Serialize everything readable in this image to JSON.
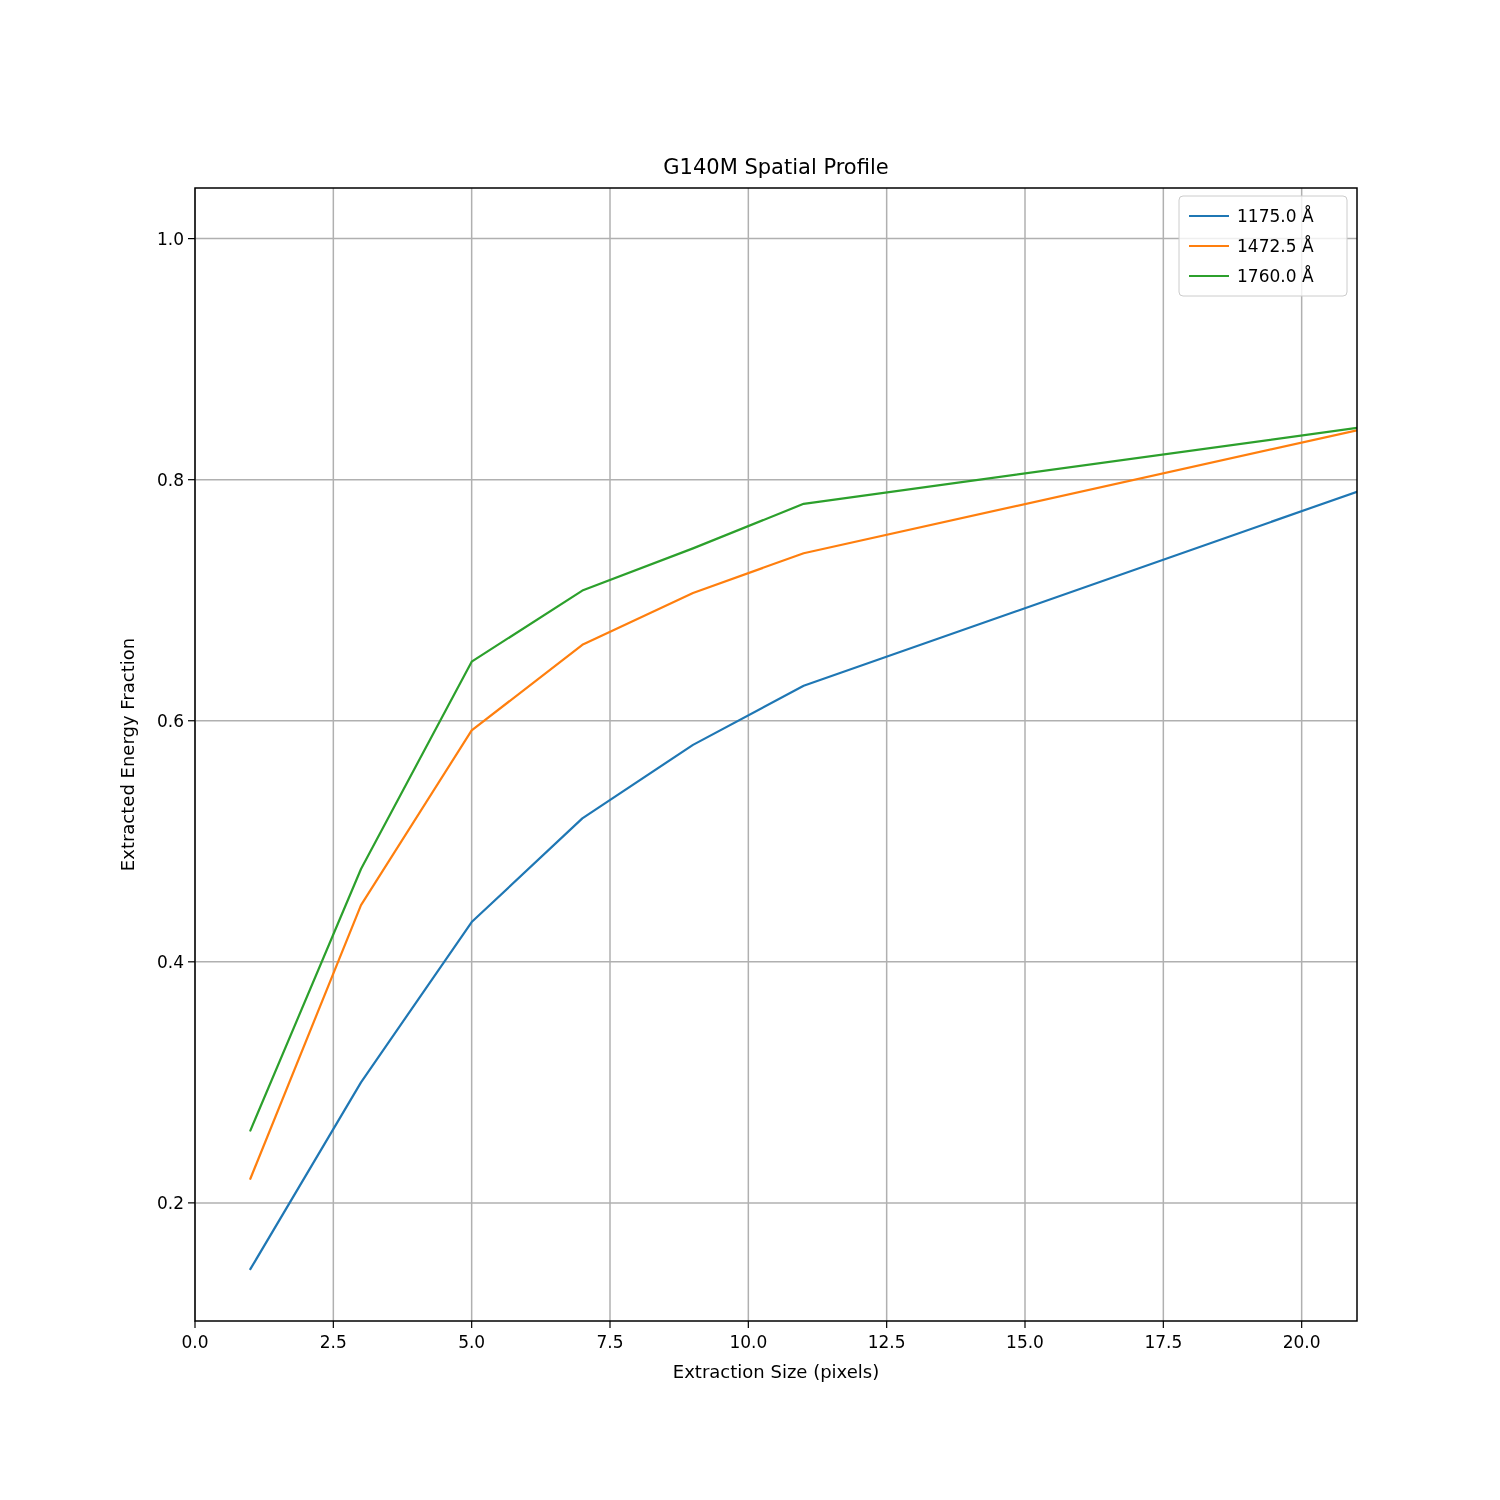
{
  "chart_data": {
    "type": "line",
    "title": "G140M Spatial Profile",
    "xlabel": "Extraction Size (pixels)",
    "ylabel": "Extracted Energy Fraction",
    "x": [
      1,
      3,
      5,
      7,
      9,
      11,
      21
    ],
    "series": [
      {
        "name": "1175.0 Å",
        "color": "#1f77b4",
        "values": [
          0.145,
          0.3,
          0.433,
          0.519,
          0.58,
          0.629,
          0.79
        ]
      },
      {
        "name": "1472.5 Å",
        "color": "#ff7f0e",
        "values": [
          0.22,
          0.447,
          0.592,
          0.663,
          0.706,
          0.739,
          0.841
        ]
      },
      {
        "name": "1760.0 Å",
        "color": "#2ca02c",
        "values": [
          0.26,
          0.477,
          0.649,
          0.708,
          0.743,
          0.78,
          0.843
        ]
      }
    ],
    "xlim": [
      0,
      21
    ],
    "ylim": [
      0.102,
      1.042
    ],
    "xticks": [
      {
        "value": 0,
        "label": "0.0"
      },
      {
        "value": 2.5,
        "label": "2.5"
      },
      {
        "value": 5,
        "label": "5.0"
      },
      {
        "value": 7.5,
        "label": "7.5"
      },
      {
        "value": 10,
        "label": "10.0"
      },
      {
        "value": 12.5,
        "label": "12.5"
      },
      {
        "value": 15,
        "label": "15.0"
      },
      {
        "value": 17.5,
        "label": "17.5"
      },
      {
        "value": 20,
        "label": "20.0"
      }
    ],
    "yticks": [
      0.2,
      0.4,
      0.6,
      0.8,
      {
        "value": 1,
        "label": "1.0"
      }
    ],
    "grid": true,
    "legend": "top right",
    "marker": "none",
    "line_style": "solid"
  }
}
